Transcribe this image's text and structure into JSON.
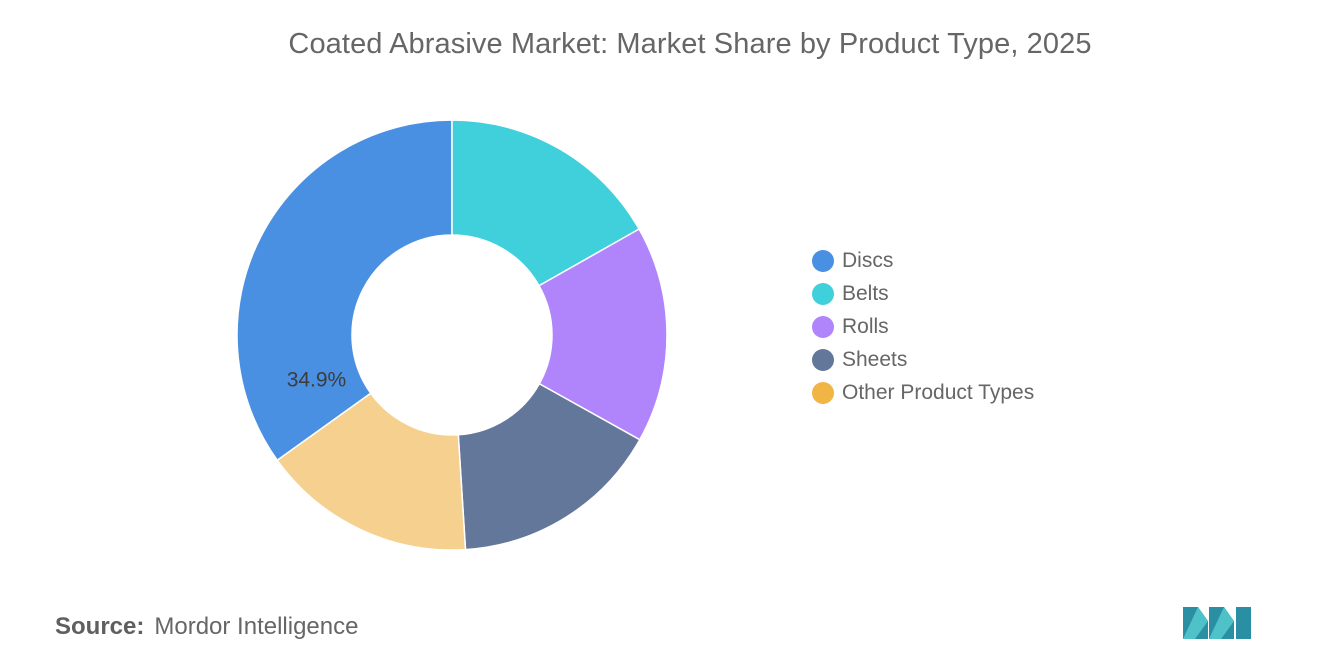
{
  "chart_data": {
    "type": "pie",
    "title": "Coated Abrasive Market: Market Share by Product Type, 2025",
    "categories": [
      "Discs",
      "Belts",
      "Rolls",
      "Sheets",
      "Other Product Types"
    ],
    "values": [
      34.9,
      16.8,
      16.3,
      15.9,
      16.1
    ],
    "colors": [
      "#4a90e2",
      "#40d0dc",
      "#b085fb",
      "#63779b",
      "#f5d08e"
    ],
    "data_labels": [
      {
        "category": "Discs",
        "text": "34.9%"
      }
    ],
    "legend_position": "right",
    "donut": true
  },
  "legend": {
    "items": [
      {
        "label": "Discs",
        "color": "#4a90e2"
      },
      {
        "label": "Belts",
        "color": "#40d0dc"
      },
      {
        "label": "Rolls",
        "color": "#b085fb"
      },
      {
        "label": "Sheets",
        "color": "#63779b"
      },
      {
        "label": "Other Product Types",
        "color": "#f0b544"
      }
    ]
  },
  "source": {
    "label": "Source:",
    "text": "Mordor Intelligence"
  },
  "logo": {
    "colors": [
      "#2a8fa3",
      "#4fc2c9"
    ]
  }
}
